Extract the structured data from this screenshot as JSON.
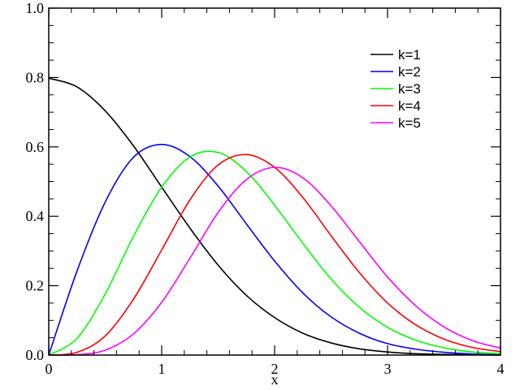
{
  "chart_data": {
    "type": "line",
    "xlabel": "x",
    "ylabel": "",
    "xlim": [
      0,
      4
    ],
    "ylim": [
      0,
      1.0
    ],
    "xticks": [
      0,
      1,
      2,
      3,
      4
    ],
    "xtick_labels": [
      "0",
      "1",
      "2",
      "3",
      "4"
    ],
    "yticks": [
      0,
      0.2,
      0.4,
      0.6,
      0.8,
      1.0
    ],
    "ytick_labels": [
      "0.0",
      "0.2",
      "0.4",
      "0.6",
      "0.8",
      "1.0"
    ],
    "grid": false,
    "legend_position": "top-right",
    "x": [
      0,
      0.25,
      0.5,
      0.75,
      1.0,
      1.25,
      1.5,
      1.75,
      2.0,
      2.25,
      2.5,
      2.75,
      3.0,
      3.25,
      3.5,
      3.75,
      4.0
    ],
    "series": [
      {
        "name": "k=1",
        "color": "#000000",
        "values": [
          0.798,
          0.773,
          0.704,
          0.603,
          0.484,
          0.366,
          0.259,
          0.172,
          0.108,
          0.063,
          0.035,
          0.018,
          0.009,
          0.004,
          0.002,
          0.001,
          0.0
        ]
      },
      {
        "name": "k=2",
        "color": "#0000ff",
        "values": [
          0.0,
          0.242,
          0.441,
          0.57,
          0.607,
          0.572,
          0.487,
          0.378,
          0.271,
          0.179,
          0.11,
          0.063,
          0.033,
          0.017,
          0.008,
          0.003,
          0.001
        ]
      },
      {
        "name": "k=3",
        "color": "#00ff00",
        "values": [
          0.0,
          0.048,
          0.176,
          0.342,
          0.484,
          0.571,
          0.584,
          0.529,
          0.432,
          0.322,
          0.219,
          0.138,
          0.08,
          0.043,
          0.021,
          0.009,
          0.004
        ]
      },
      {
        "name": "k=4",
        "color": "#ff0000",
        "values": [
          0.0,
          0.008,
          0.055,
          0.161,
          0.303,
          0.447,
          0.548,
          0.578,
          0.541,
          0.454,
          0.344,
          0.238,
          0.15,
          0.087,
          0.046,
          0.022,
          0.01
        ]
      },
      {
        "name": "k=5",
        "color": "#ff00ff",
        "values": [
          0.0,
          0.001,
          0.014,
          0.061,
          0.152,
          0.279,
          0.411,
          0.506,
          0.541,
          0.511,
          0.43,
          0.327,
          0.225,
          0.142,
          0.081,
          0.042,
          0.02
        ]
      }
    ]
  }
}
